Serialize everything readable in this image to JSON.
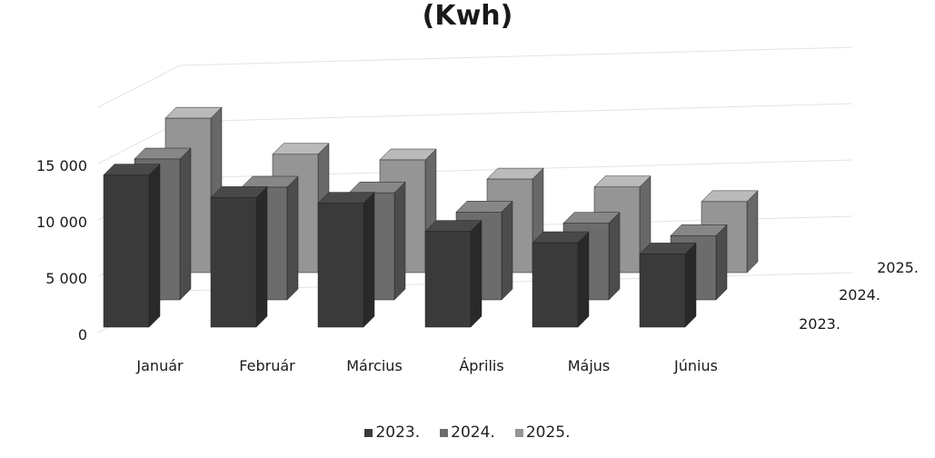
{
  "chart_data": {
    "type": "bar",
    "title": "(Kwh)",
    "categories": [
      "Január",
      "Február",
      "Március",
      "Április",
      "Május",
      "Június"
    ],
    "series": [
      {
        "name": "2023.",
        "values": [
          13500,
          11500,
          11000,
          8500,
          7500,
          6500
        ],
        "color": "#3a3a3a"
      },
      {
        "name": "2024.",
        "values": [
          12500,
          10000,
          9500,
          7800,
          6800,
          5700
        ],
        "color": "#6c6c6c"
      },
      {
        "name": "2025.",
        "values": [
          13700,
          10500,
          10000,
          8300,
          7600,
          6300
        ],
        "color": "#959595"
      }
    ],
    "yticks": [
      "0",
      "5 000",
      "10 000",
      "15 000"
    ],
    "ylim": [
      0,
      20000
    ],
    "legend": {
      "position": "bottom",
      "labels": [
        "2023.",
        "2024.",
        "2025."
      ]
    },
    "grid": true
  }
}
